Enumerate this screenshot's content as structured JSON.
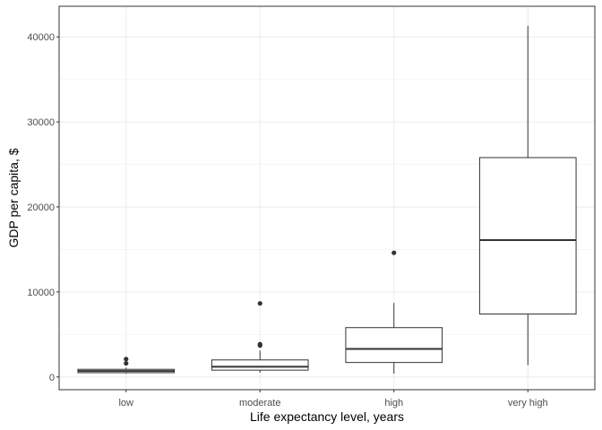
{
  "chart_data": {
    "type": "boxplot",
    "title": "",
    "xlabel": "Life expectancy level, years",
    "ylabel": "GDP per capita, $",
    "categories": [
      "low",
      "moderate",
      "high",
      "very high"
    ],
    "ylim": [
      -1500,
      43600
    ],
    "yticks": [
      0,
      10000,
      20000,
      30000,
      40000
    ],
    "ytick_labels": [
      "0",
      "10000",
      "20000",
      "30000",
      "40000"
    ],
    "grid": true,
    "legend": "none",
    "boxes": [
      {
        "category": "low",
        "whisker_low": 380,
        "q1": 500,
        "median": 700,
        "q3": 900,
        "whisker_high": 1100,
        "outliers": [
          1600,
          2100
        ]
      },
      {
        "category": "moderate",
        "whisker_low": 500,
        "q1": 800,
        "median": 1200,
        "q3": 2000,
        "whisker_high": 3100,
        "outliers": [
          3700,
          3850,
          8650
        ]
      },
      {
        "category": "high",
        "whisker_low": 400,
        "q1": 1700,
        "median": 3300,
        "q3": 5800,
        "whisker_high": 8700,
        "outliers": [
          14600
        ]
      },
      {
        "category": "very high",
        "whisker_low": 1400,
        "q1": 7400,
        "median": 16100,
        "q3": 25800,
        "whisker_high": 41300,
        "outliers": []
      }
    ]
  }
}
